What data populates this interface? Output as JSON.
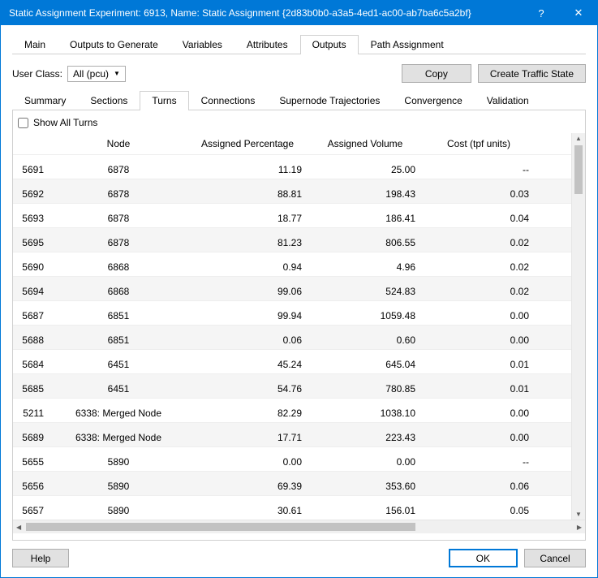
{
  "window": {
    "title": "Static Assignment Experiment: 6913, Name: Static Assignment  {2d83b0b0-a3a5-4ed1-ac00-ab7ba6c5a2bf}",
    "help_icon": "?",
    "close_icon": "✕"
  },
  "main_tabs": {
    "items": [
      "Main",
      "Outputs to Generate",
      "Variables",
      "Attributes",
      "Outputs",
      "Path Assignment"
    ],
    "active": "Outputs"
  },
  "userclass": {
    "label": "User Class:",
    "value": "All (pcu)"
  },
  "buttons": {
    "copy": "Copy",
    "create_state": "Create Traffic State",
    "help": "Help",
    "ok": "OK",
    "cancel": "Cancel"
  },
  "sub_tabs": {
    "items": [
      "Summary",
      "Sections",
      "Turns",
      "Connections",
      "Supernode Trajectories",
      "Convergence",
      "Validation"
    ],
    "active": "Turns"
  },
  "show_all": {
    "label": "Show All Turns",
    "checked": false
  },
  "table": {
    "columns": {
      "id": "",
      "node": "Node",
      "ap": "Assigned Percentage",
      "av": "Assigned Volume",
      "cost": "Cost (tpf units)"
    },
    "rows": [
      {
        "id": "5691",
        "node": "6878",
        "ap": "11.19",
        "av": "25.00",
        "cost": "--",
        "alt": false
      },
      {
        "id": "5692",
        "node": "6878",
        "ap": "88.81",
        "av": "198.43",
        "cost": "0.03",
        "alt": true
      },
      {
        "id": "5693",
        "node": "6878",
        "ap": "18.77",
        "av": "186.41",
        "cost": "0.04",
        "alt": false
      },
      {
        "id": "5695",
        "node": "6878",
        "ap": "81.23",
        "av": "806.55",
        "cost": "0.02",
        "alt": true
      },
      {
        "id": "5690",
        "node": "6868",
        "ap": "0.94",
        "av": "4.96",
        "cost": "0.02",
        "alt": false
      },
      {
        "id": "5694",
        "node": "6868",
        "ap": "99.06",
        "av": "524.83",
        "cost": "0.02",
        "alt": true
      },
      {
        "id": "5687",
        "node": "6851",
        "ap": "99.94",
        "av": "1059.48",
        "cost": "0.00",
        "alt": false
      },
      {
        "id": "5688",
        "node": "6851",
        "ap": "0.06",
        "av": "0.60",
        "cost": "0.00",
        "alt": true
      },
      {
        "id": "5684",
        "node": "6451",
        "ap": "45.24",
        "av": "645.04",
        "cost": "0.01",
        "alt": false
      },
      {
        "id": "5685",
        "node": "6451",
        "ap": "54.76",
        "av": "780.85",
        "cost": "0.01",
        "alt": true
      },
      {
        "id": "5211",
        "node": "6338: Merged Node",
        "ap": "82.29",
        "av": "1038.10",
        "cost": "0.00",
        "alt": false
      },
      {
        "id": "5689",
        "node": "6338: Merged Node",
        "ap": "17.71",
        "av": "223.43",
        "cost": "0.00",
        "alt": true
      },
      {
        "id": "5655",
        "node": "5890",
        "ap": "0.00",
        "av": "0.00",
        "cost": "--",
        "alt": false
      },
      {
        "id": "5656",
        "node": "5890",
        "ap": "69.39",
        "av": "353.60",
        "cost": "0.06",
        "alt": true
      },
      {
        "id": "5657",
        "node": "5890",
        "ap": "30.61",
        "av": "156.01",
        "cost": "0.05",
        "alt": false
      }
    ]
  },
  "colors": {
    "titlebar": "#0078d7",
    "border": "#d0d0d0",
    "alt_row": "#f5f5f5"
  }
}
